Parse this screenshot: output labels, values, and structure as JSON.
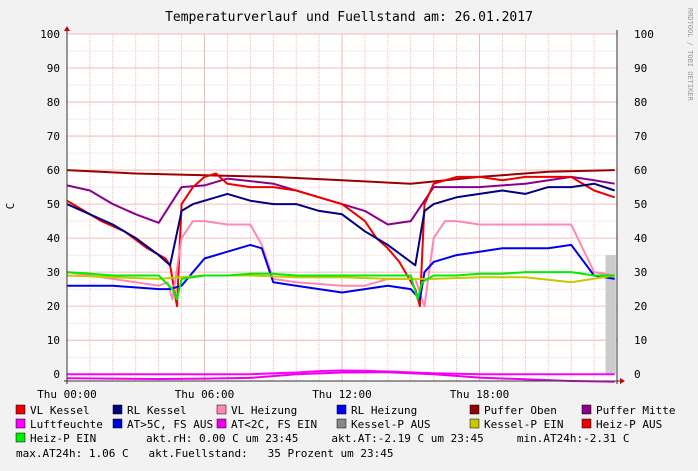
{
  "chart_data": {
    "type": "line",
    "title": "Temperaturverlauf und Fuellstand am: 26.01.2017",
    "ylabel": "C",
    "watermark": "RRDTOOL / TOBI OETIKER",
    "ylim": [
      -2,
      100
    ],
    "y_ticks": [
      0,
      10,
      20,
      30,
      40,
      50,
      60,
      70,
      80,
      90,
      100
    ],
    "x_range_hours": [
      0,
      24
    ],
    "x_ticks": [
      {
        "hour": 0,
        "label": "Thu 00:00"
      },
      {
        "hour": 6,
        "label": "Thu 06:00"
      },
      {
        "hour": 12,
        "label": "Thu 12:00"
      },
      {
        "hour": 18,
        "label": "Thu 18:00"
      }
    ],
    "series": [
      {
        "name": "Puffer Oben",
        "color": "#990000",
        "x": [
          0,
          3,
          6,
          9,
          12,
          15,
          18,
          21,
          23.9
        ],
        "y": [
          60,
          59,
          58.5,
          58,
          57,
          56,
          58,
          59.5,
          60
        ]
      },
      {
        "name": "Puffer Mitte",
        "color": "#8b008b",
        "x": [
          0,
          1,
          2,
          3,
          4,
          5,
          6,
          7,
          9,
          11,
          13,
          14,
          15,
          16,
          18,
          20,
          22,
          23,
          23.9
        ],
        "y": [
          55.5,
          54,
          50,
          47,
          44.5,
          55,
          55.5,
          57.5,
          56,
          52,
          48,
          44,
          45,
          55,
          55,
          56,
          58,
          57,
          56
        ]
      },
      {
        "name": "VL Kessel",
        "color": "#ee0000",
        "x": [
          0,
          0.5,
          1.5,
          2.5,
          3.5,
          4.3,
          4.5,
          4.8,
          5,
          5.5,
          6,
          6.5,
          7,
          8,
          9,
          10,
          11,
          12,
          13,
          13.5,
          14,
          14.5,
          15.2,
          15.4,
          15.6,
          16,
          17,
          18,
          19,
          20,
          21,
          22,
          23,
          23.9
        ],
        "y": [
          51,
          49,
          45,
          42,
          37,
          34,
          32,
          20,
          50,
          55,
          58,
          59,
          56,
          55,
          55,
          54,
          52,
          50,
          45,
          40,
          37,
          33,
          25,
          20,
          50,
          56,
          58,
          58,
          57,
          58,
          58,
          58,
          54,
          52
        ]
      },
      {
        "name": "RL Kessel",
        "color": "#000080",
        "x": [
          0,
          1,
          2,
          3,
          4,
          4.5,
          5,
          5.5,
          6,
          7,
          8,
          9,
          10,
          11,
          12,
          13,
          14,
          15.2,
          15.6,
          16,
          17,
          18,
          19,
          20,
          21,
          22,
          23,
          23.9
        ],
        "y": [
          50,
          47,
          44,
          40,
          35,
          32,
          48,
          50,
          51,
          53,
          51,
          50,
          50,
          48,
          47,
          42,
          38,
          32,
          48,
          50,
          52,
          53,
          54,
          53,
          55,
          55,
          56,
          54
        ]
      },
      {
        "name": "VL Heizung",
        "color": "#ff88b3",
        "x": [
          0,
          1,
          2,
          3,
          4,
          4.4,
          4.6,
          5,
          5.5,
          6,
          7,
          8,
          8.5,
          9,
          10,
          12,
          13,
          14,
          15.2,
          15.6,
          16,
          16.5,
          17,
          18,
          19,
          20,
          21,
          22,
          23,
          23.9
        ],
        "y": [
          30,
          29,
          28,
          27,
          26,
          27,
          22,
          40,
          45,
          45,
          44,
          44,
          38,
          28,
          27,
          26,
          26,
          28,
          28,
          20,
          40,
          45,
          45,
          44,
          44,
          44,
          44,
          44,
          30,
          29
        ]
      },
      {
        "name": "RL Heizung",
        "color": "#0000ee",
        "x": [
          0,
          2,
          4,
          4.5,
          5,
          5.5,
          6,
          7,
          8,
          8.5,
          9,
          10,
          11,
          12,
          13,
          14,
          15,
          15.4,
          15.6,
          16,
          17,
          18,
          19,
          20,
          21,
          22,
          23,
          23.9
        ],
        "y": [
          26,
          26,
          25,
          25,
          26,
          30,
          34,
          36,
          38,
          37,
          27,
          26,
          25,
          24,
          25,
          26,
          25,
          22,
          30,
          33,
          35,
          36,
          37,
          37,
          37,
          38,
          29,
          28
        ]
      },
      {
        "name": "Luftfeuchte",
        "color": "#ff00ff",
        "x": [
          0,
          6,
          8,
          10,
          11,
          12,
          13,
          14,
          16,
          18,
          20,
          23.9
        ],
        "y": [
          0,
          0,
          0,
          0.5,
          0.9,
          1.1,
          1,
          0.8,
          0.3,
          0,
          0,
          0
        ]
      },
      {
        "name": "AT>5C, FS AUS",
        "color": "#0000cc",
        "x": [],
        "y": []
      },
      {
        "name": "AT<2C, FS EIN",
        "color": "#ee00ee",
        "x": [
          0,
          2,
          4,
          6,
          8,
          10,
          12,
          14,
          16,
          18,
          20,
          22,
          23.9
        ],
        "y": [
          -1.2,
          -1.3,
          -1.4,
          -1.3,
          -1.1,
          0,
          0.5,
          0.6,
          0,
          -1,
          -1.5,
          -2,
          -2.2
        ]
      },
      {
        "name": "Kessel-P AUS",
        "color": "#888888",
        "x": [],
        "y": []
      },
      {
        "name": "Kessel-P EIN",
        "color": "#c8c800",
        "x": [
          0,
          2,
          4,
          6,
          8,
          10,
          12,
          14,
          16,
          18,
          20,
          22,
          23.9
        ],
        "y": [
          29,
          28.5,
          28,
          29,
          29,
          28.5,
          28.5,
          28,
          28,
          28.5,
          28.5,
          27,
          29
        ]
      },
      {
        "name": "Heiz-P AUS",
        "color": "#ee0000",
        "x": [],
        "y": []
      },
      {
        "name": "Heiz-P EIN",
        "color": "#00ee00",
        "x": [
          0,
          1,
          2,
          3,
          4,
          4.6,
          4.8,
          5,
          6,
          7,
          8,
          9,
          10,
          12,
          14,
          15,
          15.3,
          15.5,
          16,
          17,
          18,
          19,
          20,
          21,
          22,
          23,
          23.9
        ],
        "y": [
          30,
          29.5,
          29,
          29,
          29,
          25,
          22,
          28,
          29,
          29,
          29.5,
          29.5,
          29,
          29,
          29,
          29,
          22,
          27,
          29,
          29,
          29.5,
          29.5,
          30,
          30,
          30,
          29,
          29
        ]
      }
    ],
    "bar": {
      "name": "akt.Fuellstand",
      "color": "#cccccc",
      "x_start": 23.5,
      "x_end": 23.95,
      "y": 35
    },
    "legend_rows": [
      [
        {
          "name": "VL Kessel",
          "color": "#ee0000"
        },
        {
          "name": "RL Kessel",
          "color": "#000080"
        },
        {
          "name": "VL Heizung",
          "color": "#ff88b3"
        },
        {
          "name": "RL Heizung",
          "color": "#0000ee"
        },
        {
          "name": "Puffer Oben",
          "color": "#990000"
        },
        {
          "name": "Puffer Mitte",
          "color": "#8b008b"
        }
      ],
      [
        {
          "name": "Luftfeuchte",
          "color": "#ff00ff"
        },
        {
          "name": "AT>5C, FS AUS",
          "color": "#0000cc"
        },
        {
          "name": "AT<2C, FS EIN",
          "color": "#ee00ee"
        },
        {
          "name": "Kessel-P AUS",
          "color": "#888888"
        },
        {
          "name": "Kessel-P EIN",
          "color": "#c8c800"
        },
        {
          "name": "Heiz-P AUS",
          "color": "#ee0000"
        }
      ]
    ],
    "legend_row3": {
      "swatch_color": "#00ee00",
      "label": "Heiz-P EIN",
      "text": "akt.rH: 0.00 C um 23:45     akt.AT:-2.19 C um 23:45     min.AT24h:-2.31 C"
    },
    "legend_row4": "max.AT24h: 1.06 C   akt.Fuellstand:   35 Prozent um 23:45"
  }
}
